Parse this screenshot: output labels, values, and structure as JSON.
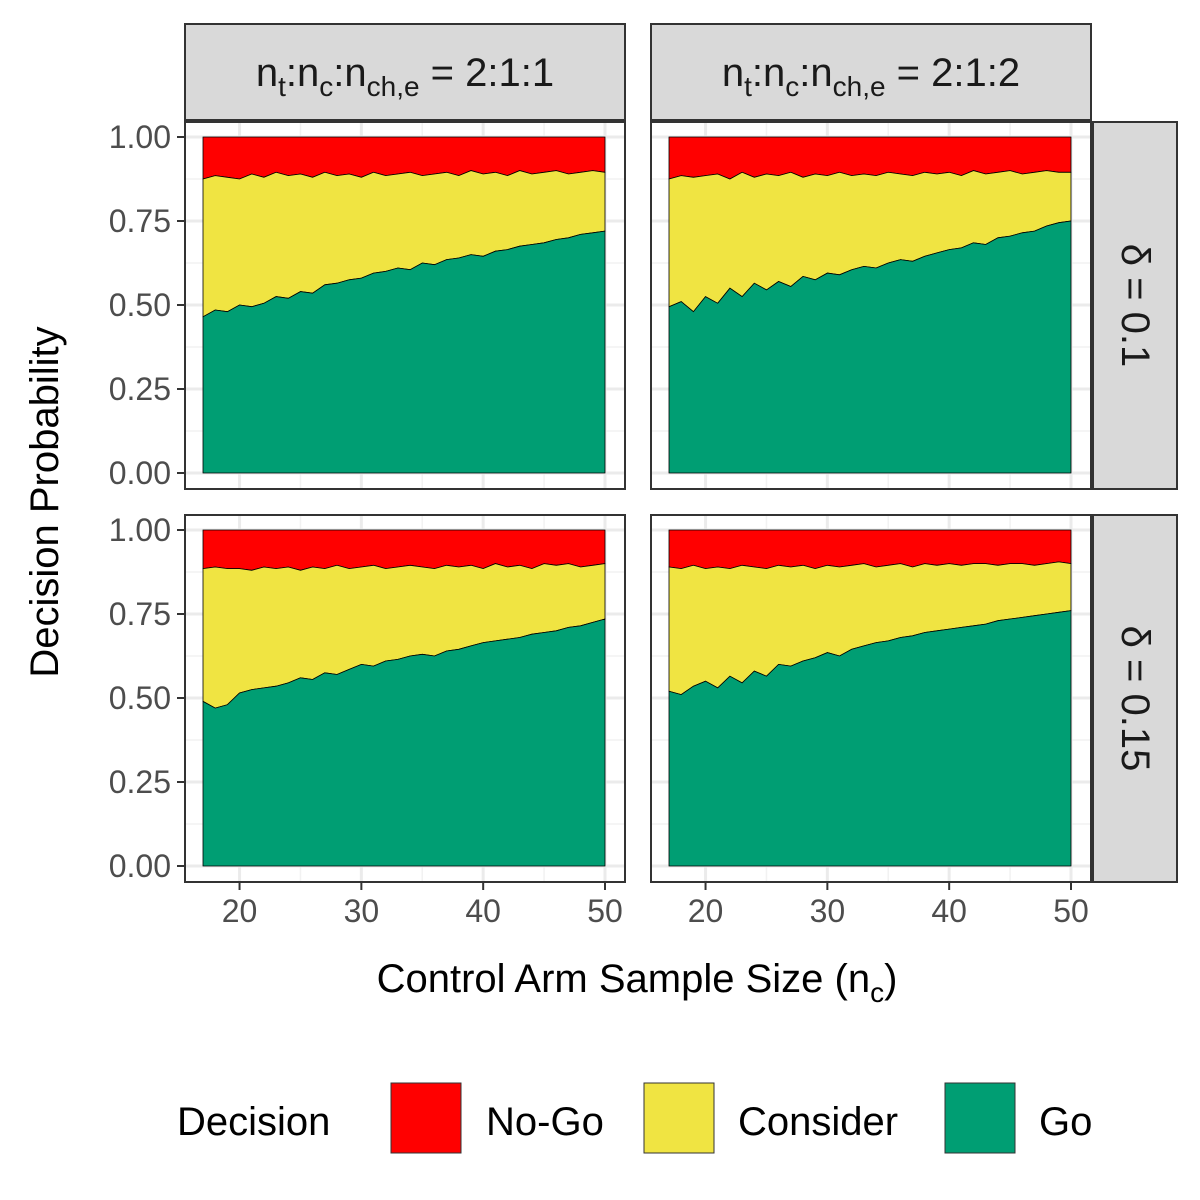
{
  "chart_data": {
    "type": "area",
    "stacked": true,
    "xlabel": "Control Arm Sample Size (n",
    "xlabel_sub": "c",
    "xlabel_close": ")",
    "ylabel": "Decision Probability",
    "xlim": [
      17,
      50
    ],
    "ylim": [
      0,
      1
    ],
    "xticks": [
      "20",
      "30",
      "40",
      "50"
    ],
    "yticks": [
      "0.00",
      "0.25",
      "0.50",
      "0.75",
      "1.00"
    ],
    "grid": true,
    "legend_position": "bottom",
    "legend": {
      "title": "Decision",
      "items": [
        {
          "label": "No-Go",
          "color": "#FF0000"
        },
        {
          "label": "Consider",
          "color": "#F0E442"
        },
        {
          "label": "Go",
          "color": "#009E73"
        }
      ]
    },
    "columns": [
      {
        "parts": [
          [
            "n",
            ""
          ],
          [
            "t",
            "sub"
          ],
          [
            ":n",
            ""
          ],
          [
            "c",
            "sub"
          ],
          [
            ":n",
            ""
          ],
          [
            "ch,e",
            "sub"
          ],
          [
            " = 2:1:1",
            ""
          ]
        ]
      },
      {
        "parts": [
          [
            "n",
            ""
          ],
          [
            "t",
            "sub"
          ],
          [
            ":n",
            ""
          ],
          [
            "c",
            "sub"
          ],
          [
            ":n",
            ""
          ],
          [
            "ch,e",
            "sub"
          ],
          [
            " = 2:1:2",
            ""
          ]
        ]
      }
    ],
    "rows": [
      {
        "label": "δ = 0.1"
      },
      {
        "label": "δ = 0.15"
      }
    ],
    "x": [
      17,
      18,
      19,
      20,
      21,
      22,
      23,
      24,
      25,
      26,
      27,
      28,
      29,
      30,
      31,
      32,
      33,
      34,
      35,
      36,
      37,
      38,
      39,
      40,
      41,
      42,
      43,
      44,
      45,
      46,
      47,
      48,
      49,
      50
    ],
    "panels": [
      {
        "column": 0,
        "row": 0,
        "go": [
          0.465,
          0.485,
          0.48,
          0.5,
          0.495,
          0.505,
          0.525,
          0.52,
          0.54,
          0.535,
          0.56,
          0.565,
          0.575,
          0.58,
          0.595,
          0.6,
          0.61,
          0.605,
          0.625,
          0.62,
          0.635,
          0.64,
          0.65,
          0.645,
          0.66,
          0.665,
          0.675,
          0.68,
          0.685,
          0.695,
          0.7,
          0.71,
          0.715,
          0.72
        ],
        "go_or_consider": [
          0.875,
          0.885,
          0.88,
          0.875,
          0.89,
          0.88,
          0.895,
          0.885,
          0.89,
          0.88,
          0.895,
          0.885,
          0.89,
          0.88,
          0.895,
          0.885,
          0.89,
          0.895,
          0.885,
          0.89,
          0.895,
          0.885,
          0.9,
          0.89,
          0.895,
          0.885,
          0.9,
          0.89,
          0.895,
          0.9,
          0.89,
          0.895,
          0.9,
          0.895
        ]
      },
      {
        "column": 1,
        "row": 0,
        "go": [
          0.495,
          0.51,
          0.48,
          0.525,
          0.505,
          0.55,
          0.525,
          0.565,
          0.545,
          0.57,
          0.555,
          0.585,
          0.575,
          0.595,
          0.59,
          0.605,
          0.615,
          0.61,
          0.625,
          0.635,
          0.63,
          0.645,
          0.655,
          0.665,
          0.67,
          0.685,
          0.68,
          0.7,
          0.705,
          0.715,
          0.72,
          0.735,
          0.745,
          0.75
        ],
        "go_or_consider": [
          0.875,
          0.885,
          0.88,
          0.885,
          0.89,
          0.875,
          0.895,
          0.88,
          0.89,
          0.885,
          0.895,
          0.88,
          0.89,
          0.885,
          0.895,
          0.885,
          0.89,
          0.885,
          0.895,
          0.89,
          0.885,
          0.895,
          0.89,
          0.895,
          0.885,
          0.9,
          0.89,
          0.895,
          0.9,
          0.89,
          0.895,
          0.9,
          0.895,
          0.895
        ]
      },
      {
        "column": 0,
        "row": 1,
        "go": [
          0.49,
          0.47,
          0.48,
          0.515,
          0.525,
          0.53,
          0.535,
          0.545,
          0.56,
          0.555,
          0.575,
          0.57,
          0.585,
          0.6,
          0.595,
          0.61,
          0.615,
          0.625,
          0.63,
          0.625,
          0.64,
          0.645,
          0.655,
          0.665,
          0.67,
          0.675,
          0.68,
          0.69,
          0.695,
          0.7,
          0.71,
          0.715,
          0.725,
          0.735
        ],
        "go_or_consider": [
          0.885,
          0.89,
          0.885,
          0.885,
          0.88,
          0.89,
          0.885,
          0.89,
          0.88,
          0.89,
          0.885,
          0.895,
          0.885,
          0.89,
          0.895,
          0.885,
          0.89,
          0.895,
          0.89,
          0.885,
          0.895,
          0.89,
          0.895,
          0.885,
          0.9,
          0.89,
          0.895,
          0.885,
          0.9,
          0.895,
          0.9,
          0.89,
          0.895,
          0.9
        ]
      },
      {
        "column": 1,
        "row": 1,
        "go": [
          0.52,
          0.51,
          0.535,
          0.55,
          0.53,
          0.565,
          0.545,
          0.58,
          0.565,
          0.6,
          0.595,
          0.61,
          0.62,
          0.635,
          0.625,
          0.645,
          0.655,
          0.665,
          0.67,
          0.68,
          0.685,
          0.695,
          0.7,
          0.705,
          0.71,
          0.715,
          0.72,
          0.73,
          0.735,
          0.74,
          0.745,
          0.75,
          0.755,
          0.76
        ],
        "go_or_consider": [
          0.89,
          0.885,
          0.895,
          0.885,
          0.89,
          0.885,
          0.895,
          0.89,
          0.885,
          0.895,
          0.89,
          0.895,
          0.885,
          0.895,
          0.89,
          0.895,
          0.9,
          0.89,
          0.895,
          0.9,
          0.89,
          0.9,
          0.895,
          0.9,
          0.895,
          0.9,
          0.9,
          0.895,
          0.9,
          0.9,
          0.895,
          0.9,
          0.905,
          0.9
        ]
      }
    ]
  }
}
